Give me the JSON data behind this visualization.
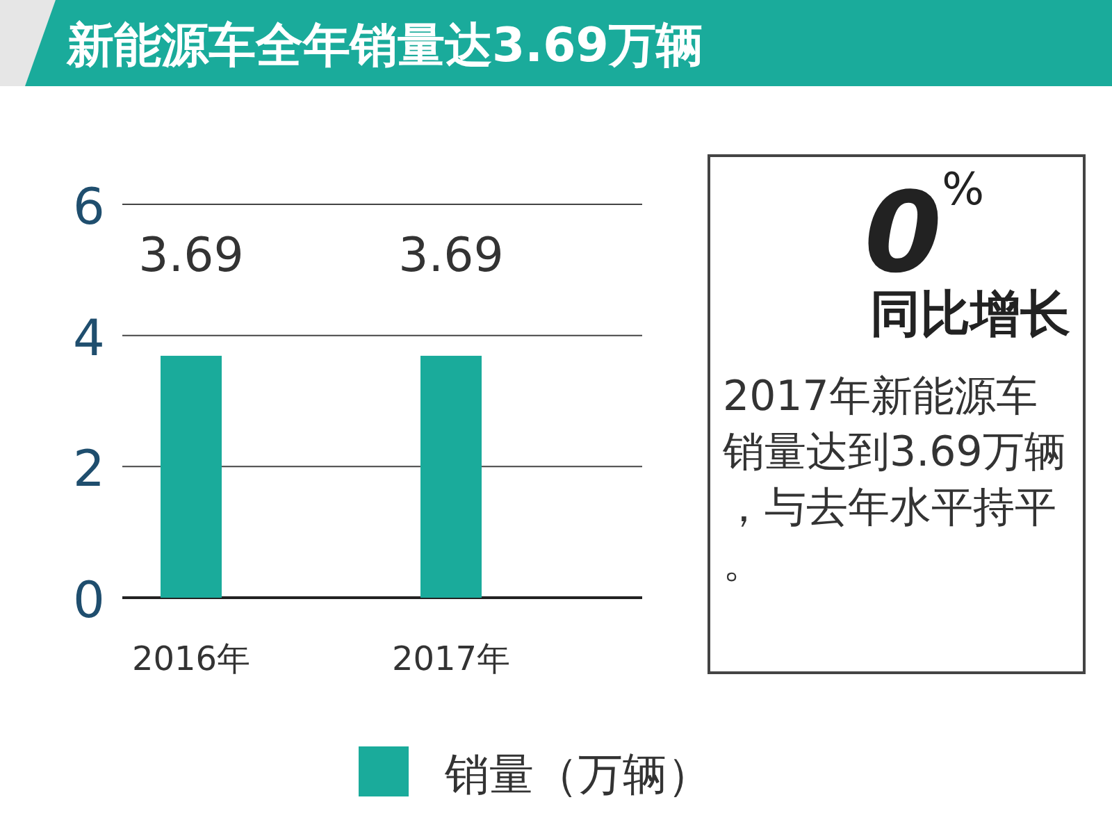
{
  "chart_data": {
    "type": "bar",
    "title": "新能源车全年销量达3.69万辆",
    "categories": [
      "2016年",
      "2017年"
    ],
    "series": [
      {
        "name": "销量（万辆）",
        "color": "#1aab9b",
        "values": [
          3.69,
          3.69
        ]
      }
    ],
    "ylim": [
      0,
      6
    ],
    "yticks": [
      0,
      2,
      4,
      6
    ],
    "grid": "y",
    "legend": "bottom",
    "data_labels": true,
    "annotations": [
      "0$^{%}$",
      "同比增长",
      "2017年新能源车销量达到3.69万辆，与去年水平持平。"
    ]
  }
}
